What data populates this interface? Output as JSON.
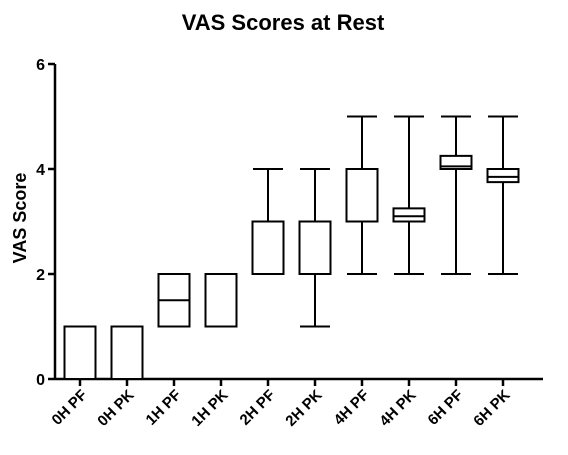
{
  "chart_data": {
    "type": "boxplot",
    "title": "VAS Scores at Rest",
    "ylabel": "VAS  Score",
    "xlabel": "",
    "ylim": [
      0,
      6
    ],
    "yticks": [
      0,
      2,
      4,
      6
    ],
    "grid": false,
    "categories": [
      "0H PF",
      "0H PK",
      "1H PF",
      "1H PK",
      "2H PF",
      "2H PK",
      "4H PF",
      "4H PK",
      "6H PF",
      "6H PK"
    ],
    "boxes": [
      {
        "min": 0,
        "q1": 0,
        "median": 0,
        "q3": 1,
        "max": 1
      },
      {
        "min": 0,
        "q1": 0,
        "median": 0,
        "q3": 1,
        "max": 1
      },
      {
        "min": 1,
        "q1": 1,
        "median": 1.5,
        "q3": 2,
        "max": 2
      },
      {
        "min": 1,
        "q1": 1,
        "median": 1,
        "q3": 2,
        "max": 2
      },
      {
        "min": 2,
        "q1": 2,
        "median": 2,
        "q3": 3,
        "max": 4
      },
      {
        "min": 1,
        "q1": 2,
        "median": 2,
        "q3": 3,
        "max": 4
      },
      {
        "min": 2,
        "q1": 3,
        "median": 3,
        "q3": 4,
        "max": 5
      },
      {
        "min": 2,
        "q1": 3,
        "median": 3.1,
        "q3": 3.25,
        "max": 5
      },
      {
        "min": 2,
        "q1": 4,
        "median": 4.05,
        "q3": 4.25,
        "max": 5
      },
      {
        "min": 2,
        "q1": 3.75,
        "median": 3.85,
        "q3": 4,
        "max": 5
      }
    ]
  }
}
